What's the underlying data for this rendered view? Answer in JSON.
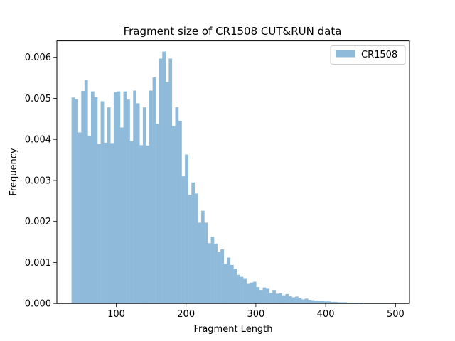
{
  "chart_data": {
    "type": "bar",
    "title": "Fragment size of CR1508 CUT&RUN data",
    "xlabel": "Fragment Length",
    "ylabel": "Frequency",
    "xlim": [
      15,
      520
    ],
    "ylim": [
      0,
      0.0064
    ],
    "bin_start": 36,
    "bin_width": 4.64,
    "xticks": [
      {
        "value": 100,
        "label": "100"
      },
      {
        "value": 200,
        "label": "200"
      },
      {
        "value": 300,
        "label": "300"
      },
      {
        "value": 400,
        "label": "400"
      },
      {
        "value": 500,
        "label": "500"
      }
    ],
    "yticks": [
      {
        "value": 0,
        "label": "0.000"
      },
      {
        "value": 0.001,
        "label": "0.001"
      },
      {
        "value": 0.002,
        "label": "0.002"
      },
      {
        "value": 0.003,
        "label": "0.003"
      },
      {
        "value": 0.004,
        "label": "0.004"
      },
      {
        "value": 0.005,
        "label": "0.005"
      },
      {
        "value": 0.006,
        "label": "0.006"
      }
    ],
    "legend_position": "top-right",
    "series": [
      {
        "name": "CR1508",
        "color": "#8fbad9",
        "values": [
          0.00502,
          0.00498,
          0.00417,
          0.00518,
          0.00545,
          0.00409,
          0.00517,
          0.00503,
          0.00389,
          0.00493,
          0.00392,
          0.00478,
          0.00391,
          0.00515,
          0.00517,
          0.00429,
          0.00517,
          0.00497,
          0.00396,
          0.00519,
          0.00488,
          0.00386,
          0.00478,
          0.00385,
          0.00519,
          0.00551,
          0.00438,
          0.00597,
          0.00614,
          0.0054,
          0.00597,
          0.00432,
          0.00478,
          0.00445,
          0.0031,
          0.00363,
          0.00265,
          0.00295,
          0.00268,
          0.00197,
          0.00226,
          0.00197,
          0.00147,
          0.00163,
          0.00146,
          0.00125,
          0.00132,
          0.00097,
          0.00112,
          0.00094,
          0.00085,
          0.0007,
          0.00065,
          0.0006,
          0.00048,
          0.00051,
          0.00053,
          0.0004,
          0.00033,
          0.00039,
          0.00036,
          0.00026,
          0.00033,
          0.00024,
          0.00025,
          0.0002,
          0.00023,
          0.00018,
          0.00015,
          0.00017,
          0.00014,
          0.0001,
          0.00012,
          9e-05,
          8e-05,
          7e-05,
          6e-05,
          6e-05,
          5e-05,
          5e-05,
          4e-05,
          4e-05,
          3e-05,
          3e-05,
          3e-05,
          2e-05,
          2e-05,
          2e-05,
          2e-05,
          2e-05,
          1e-05,
          1e-05,
          1e-05,
          1e-05,
          1e-05,
          1e-05,
          1e-05,
          1e-05,
          1e-05,
          1e-05
        ]
      }
    ]
  }
}
